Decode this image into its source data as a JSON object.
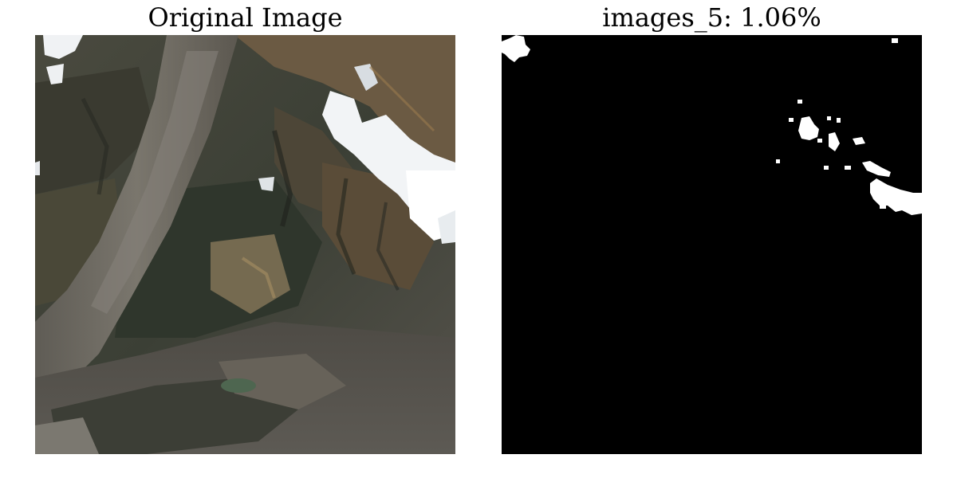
{
  "panels": {
    "original": {
      "title": "Original Image",
      "image_icon": "satellite-mountain-glacier-image"
    },
    "mask": {
      "title": "images_5: 1.06%",
      "image_icon": "binary-snow-mask-image"
    }
  },
  "colors": {
    "background": "#ffffff",
    "mask_background": "#000000",
    "mask_foreground": "#ffffff",
    "snow": "#f4f6f8",
    "rock": "#5a574f",
    "forest": "#2a3328",
    "glacier_debris": "#6e6a62",
    "ridge_brown": "#8a6a44"
  }
}
